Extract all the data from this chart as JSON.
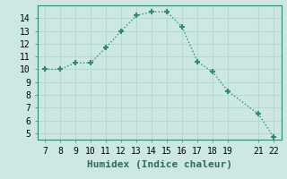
{
  "x": [
    7,
    8,
    9,
    10,
    11,
    12,
    13,
    14,
    15,
    16,
    17,
    18,
    19,
    21,
    22
  ],
  "y": [
    10.0,
    10.0,
    10.5,
    10.5,
    11.7,
    13.0,
    14.2,
    14.5,
    14.5,
    13.3,
    10.6,
    9.8,
    8.3,
    6.5,
    4.7
  ],
  "xlabel": "Humidex (Indice chaleur)",
  "xlim": [
    6.5,
    22.5
  ],
  "ylim": [
    4.5,
    15.0
  ],
  "yticks": [
    5,
    6,
    7,
    8,
    9,
    10,
    11,
    12,
    13,
    14
  ],
  "xticks": [
    7,
    8,
    9,
    10,
    11,
    12,
    13,
    14,
    15,
    16,
    17,
    18,
    19,
    21,
    22
  ],
  "line_color": "#2e8b6e",
  "bg_color": "#cde8e4",
  "grid_color": "#b8d8d4",
  "marker": "+",
  "marker_size": 5,
  "font_family": "monospace",
  "font_size_tick": 7,
  "font_size_label": 8
}
